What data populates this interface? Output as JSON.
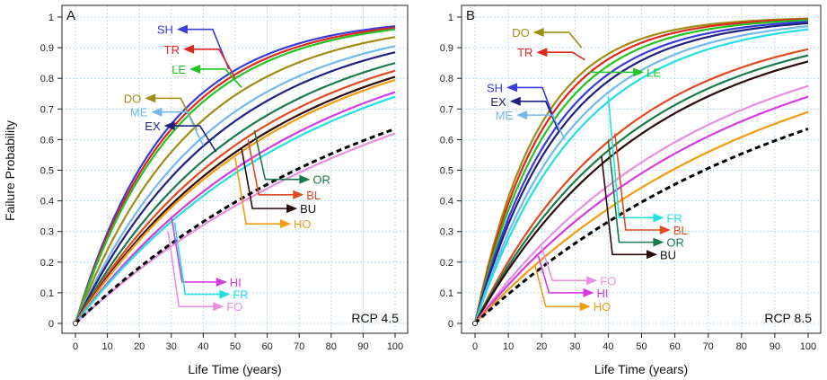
{
  "ylabel": "Failure Probability",
  "chart_data": [
    {
      "type": "line",
      "panel": "A",
      "scenario": "RCP 4.5",
      "xlabel": "Life Time (years)",
      "xlim": [
        0,
        100
      ],
      "ylim": [
        0,
        1
      ],
      "xticks": [
        0,
        10,
        20,
        30,
        40,
        50,
        60,
        70,
        80,
        90,
        100
      ],
      "yticks": [
        0,
        0.1,
        0.2,
        0.3,
        0.4,
        0.5,
        0.6,
        0.7,
        0.8,
        0.9,
        1
      ],
      "grid": true,
      "series": [
        {
          "name": "SH",
          "color": "#3b3bd9",
          "end": 0.97,
          "label_color": "#3b3bd9",
          "label_y": 0.96,
          "arrow_from": [
            48,
            0.83
          ]
        },
        {
          "name": "TR",
          "color": "#e0261f",
          "end": 0.965,
          "label_color": "#e0261f",
          "label_y": 0.895,
          "arrow_from": [
            50,
            0.8
          ]
        },
        {
          "name": "LE",
          "color": "#22c322",
          "end": 0.96,
          "label_color": "#22c322",
          "label_y": 0.83,
          "arrow_from": [
            52,
            0.77
          ]
        },
        {
          "name": "DO",
          "color": "#a08d14",
          "end": 0.935,
          "label_color": "#a08d14",
          "label_y": 0.735,
          "arrow_from": [
            38,
            0.63
          ]
        },
        {
          "name": "ME",
          "color": "#71b9ef",
          "end": 0.905,
          "label_color": "#71b9ef",
          "label_y": 0.69,
          "arrow_from": [
            40,
            0.58
          ]
        },
        {
          "name": "EX",
          "color": "#1f2080",
          "end": 0.885,
          "label_color": "#1f2080",
          "label_y": 0.645,
          "arrow_from": [
            44,
            0.56
          ]
        },
        {
          "name": "OR",
          "color": "#1b7a4c",
          "end": 0.85,
          "label_color": "#1b7a4c",
          "label_y": 0.47,
          "arrow_from": [
            56,
            0.63
          ]
        },
        {
          "name": "BL",
          "color": "#e04a20",
          "end": 0.825,
          "label_color": "#e04a20",
          "label_y": 0.42,
          "arrow_from": [
            54,
            0.6
          ]
        },
        {
          "name": "BU",
          "color": "#2a0a0a",
          "end": 0.805,
          "label_color": "#111111",
          "label_y": 0.375,
          "arrow_from": [
            52,
            0.57
          ]
        },
        {
          "name": "HO",
          "color": "#f39c12",
          "end": 0.795,
          "label_color": "#f39c12",
          "label_y": 0.325,
          "arrow_from": [
            50,
            0.54
          ]
        },
        {
          "name": "HI",
          "color": "#d63be0",
          "end": 0.755,
          "label_color": "#d63be0",
          "label_y": 0.135,
          "arrow_from": [
            30,
            0.35
          ]
        },
        {
          "name": "FR",
          "color": "#22e0e0",
          "end": 0.74,
          "label_color": "#22e0e0",
          "label_y": 0.095,
          "arrow_from": [
            31,
            0.33
          ]
        },
        {
          "name": "FO",
          "color": "#ea8fe0",
          "end": 0.62,
          "label_color": "#ea8fe0",
          "label_y": 0.055,
          "arrow_from": [
            29,
            0.3
          ]
        },
        {
          "name": "",
          "color": "#000000",
          "end": 0.635,
          "dashed": true
        }
      ]
    },
    {
      "type": "line",
      "panel": "B",
      "scenario": "RCP 8.5",
      "xlabel": "Life Time (years)",
      "xlim": [
        0,
        100
      ],
      "ylim": [
        0,
        1
      ],
      "xticks": [
        0,
        10,
        20,
        30,
        40,
        50,
        60,
        70,
        80,
        90,
        100
      ],
      "yticks": [
        0,
        0.1,
        0.2,
        0.3,
        0.4,
        0.5,
        0.6,
        0.7,
        0.8,
        0.9,
        1
      ],
      "grid": true,
      "series": [
        {
          "name": "DO",
          "color": "#a08d14",
          "end": 0.995,
          "label_color": "#a08d14",
          "label_y": 0.95,
          "arrow_from": [
            32,
            0.9
          ]
        },
        {
          "name": "TR",
          "color": "#e0261f",
          "end": 0.993,
          "label_color": "#e0261f",
          "label_y": 0.885,
          "arrow_from": [
            33,
            0.86
          ]
        },
        {
          "name": "LE",
          "color": "#22c322",
          "end": 0.99,
          "label_color": "#22c322",
          "label_y": 0.82,
          "arrow_from": [
            34,
            0.82
          ]
        },
        {
          "name": "SH",
          "color": "#3b3bd9",
          "end": 0.985,
          "label_color": "#3b3bd9",
          "label_y": 0.77,
          "arrow_from": [
            24,
            0.66
          ]
        },
        {
          "name": "EX",
          "color": "#1f2080",
          "end": 0.98,
          "label_color": "#1f2080",
          "label_y": 0.725,
          "arrow_from": [
            25,
            0.63
          ]
        },
        {
          "name": "ME",
          "color": "#71b9ef",
          "end": 0.97,
          "label_color": "#71b9ef",
          "label_y": 0.68,
          "arrow_from": [
            27,
            0.6
          ]
        },
        {
          "name": "FR",
          "color": "#22e0e0",
          "end": 0.96,
          "label_color": "#22e0e0",
          "label_y": 0.345,
          "arrow_from": [
            40,
            0.74
          ]
        },
        {
          "name": "BL",
          "color": "#e04a20",
          "end": 0.895,
          "label_color": "#e04a20",
          "label_y": 0.305,
          "arrow_from": [
            42,
            0.62
          ]
        },
        {
          "name": "OR",
          "color": "#1b7a4c",
          "end": 0.875,
          "label_color": "#1b7a4c",
          "label_y": 0.265,
          "arrow_from": [
            40,
            0.6
          ]
        },
        {
          "name": "BU",
          "color": "#2a0a0a",
          "end": 0.855,
          "label_color": "#111111",
          "label_y": 0.225,
          "arrow_from": [
            38,
            0.545
          ]
        },
        {
          "name": "FO",
          "color": "#ea8fe0",
          "end": 0.775,
          "label_color": "#ea8fe0",
          "label_y": 0.14,
          "arrow_from": [
            20,
            0.25
          ]
        },
        {
          "name": "HI",
          "color": "#d63be0",
          "end": 0.74,
          "label_color": "#d63be0",
          "label_y": 0.1,
          "arrow_from": [
            19,
            0.22
          ]
        },
        {
          "name": "HO",
          "color": "#f39c12",
          "end": 0.69,
          "label_color": "#f39c12",
          "label_y": 0.055,
          "arrow_from": [
            18,
            0.19
          ]
        },
        {
          "name": "",
          "color": "#000000",
          "end": 0.635,
          "dashed": true
        }
      ]
    }
  ]
}
